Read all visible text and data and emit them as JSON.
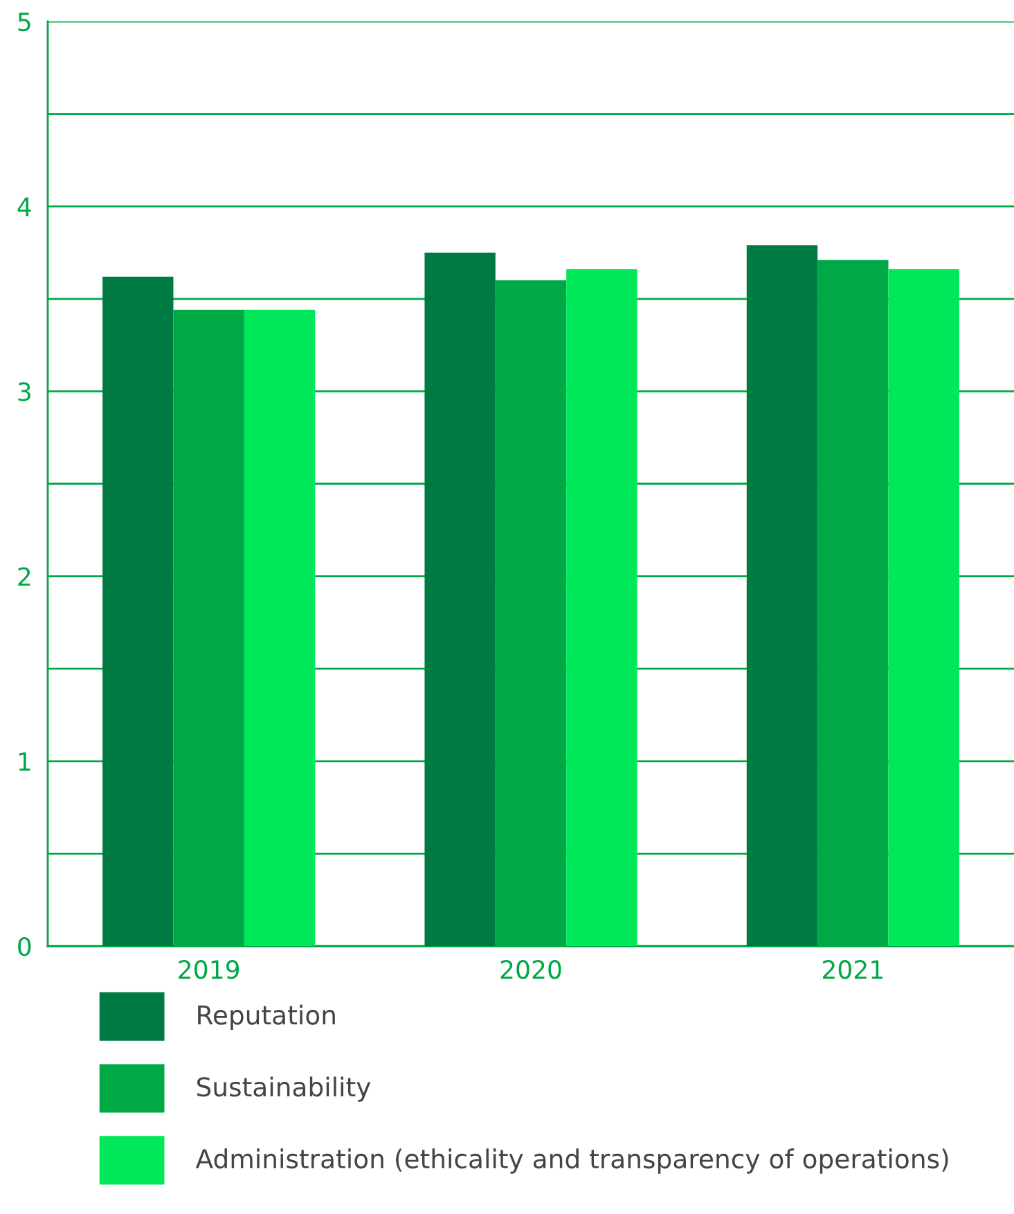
{
  "chart_data": {
    "type": "bar",
    "categories": [
      "2019",
      "2020",
      "2021"
    ],
    "series": [
      {
        "name": "Reputation",
        "color": "#007a43",
        "values": [
          3.62,
          3.75,
          3.79
        ]
      },
      {
        "name": "Sustainability",
        "color": "#00a846",
        "values": [
          3.44,
          3.6,
          3.71
        ]
      },
      {
        "name": "Administration (ethicality and transparency of operations)",
        "color": "#00e85a",
        "values": [
          3.44,
          3.66,
          3.66
        ]
      }
    ],
    "ylim": [
      0,
      5
    ],
    "yticks": [
      0,
      {
        "value": 0.5,
        "label": null
      },
      1,
      {
        "value": 1.5,
        "label": null
      },
      2,
      {
        "value": 2.5,
        "label": null
      },
      3,
      {
        "value": 3.5,
        "label": null
      },
      4,
      {
        "value": 4.5,
        "label": null
      },
      5
    ],
    "grid": "y",
    "legend": "bottom"
  }
}
